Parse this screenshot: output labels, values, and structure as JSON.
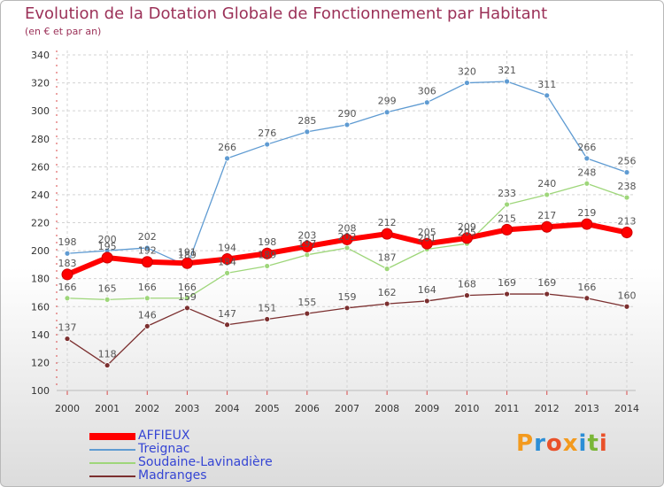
{
  "header": {
    "title": "Evolution de la Dotation Globale de Fonctionnement par Habitant",
    "subtitle": "(en € et par an)"
  },
  "logo": {
    "text": "Proxiti",
    "letters": [
      "P",
      "r",
      "o",
      "x",
      "i",
      "t",
      "i"
    ],
    "letter_colors": [
      "#f39a1e",
      "#2c8ed6",
      "#e9512a",
      "#f39a1e",
      "#2c8ed6",
      "#7ab637",
      "#e9512a"
    ]
  },
  "colors": {
    "title": "#9b3158",
    "axis_text": "#333333",
    "grid": "#d3d3d3",
    "legend_text": "#3545d4",
    "value_label": "#555555"
  },
  "chart_data": {
    "type": "line",
    "title": "Evolution de la Dotation Globale de Fonctionnement par Habitant",
    "subtitle": "(en € et par an)",
    "x": [
      "2000",
      "2001",
      "2002",
      "2003",
      "2004",
      "2005",
      "2006",
      "2007",
      "2008",
      "2009",
      "2010",
      "2011",
      "2012",
      "2013",
      "2014"
    ],
    "ylim": [
      100,
      340
    ],
    "yticks": [
      100,
      120,
      140,
      160,
      180,
      200,
      220,
      240,
      260,
      280,
      300,
      320,
      340
    ],
    "grid": true,
    "legend_position": "bottom-left",
    "series": [
      {
        "name": "AFFIEUX",
        "color": "#ff0000",
        "values": [
          183,
          195,
          192,
          191,
          194,
          198,
          203,
          208,
          212,
          205,
          209,
          215,
          217,
          219,
          213
        ]
      },
      {
        "name": "Treignac",
        "color": "#5f9bd2",
        "values": [
          198,
          200,
          202,
          189,
          266,
          276,
          285,
          290,
          299,
          306,
          320,
          321,
          311,
          266,
          256
        ]
      },
      {
        "name": "Soudaine-Lavinadière",
        "color": "#9ed67a",
        "values": [
          166,
          165,
          166,
          166,
          184,
          189,
          197,
          202,
          187,
          201,
          205,
          233,
          240,
          248,
          238
        ]
      },
      {
        "name": "Madranges",
        "color": "#7b2f2f",
        "values": [
          137,
          118,
          146,
          159,
          147,
          151,
          155,
          159,
          162,
          164,
          168,
          169,
          169,
          166,
          160
        ]
      }
    ]
  }
}
